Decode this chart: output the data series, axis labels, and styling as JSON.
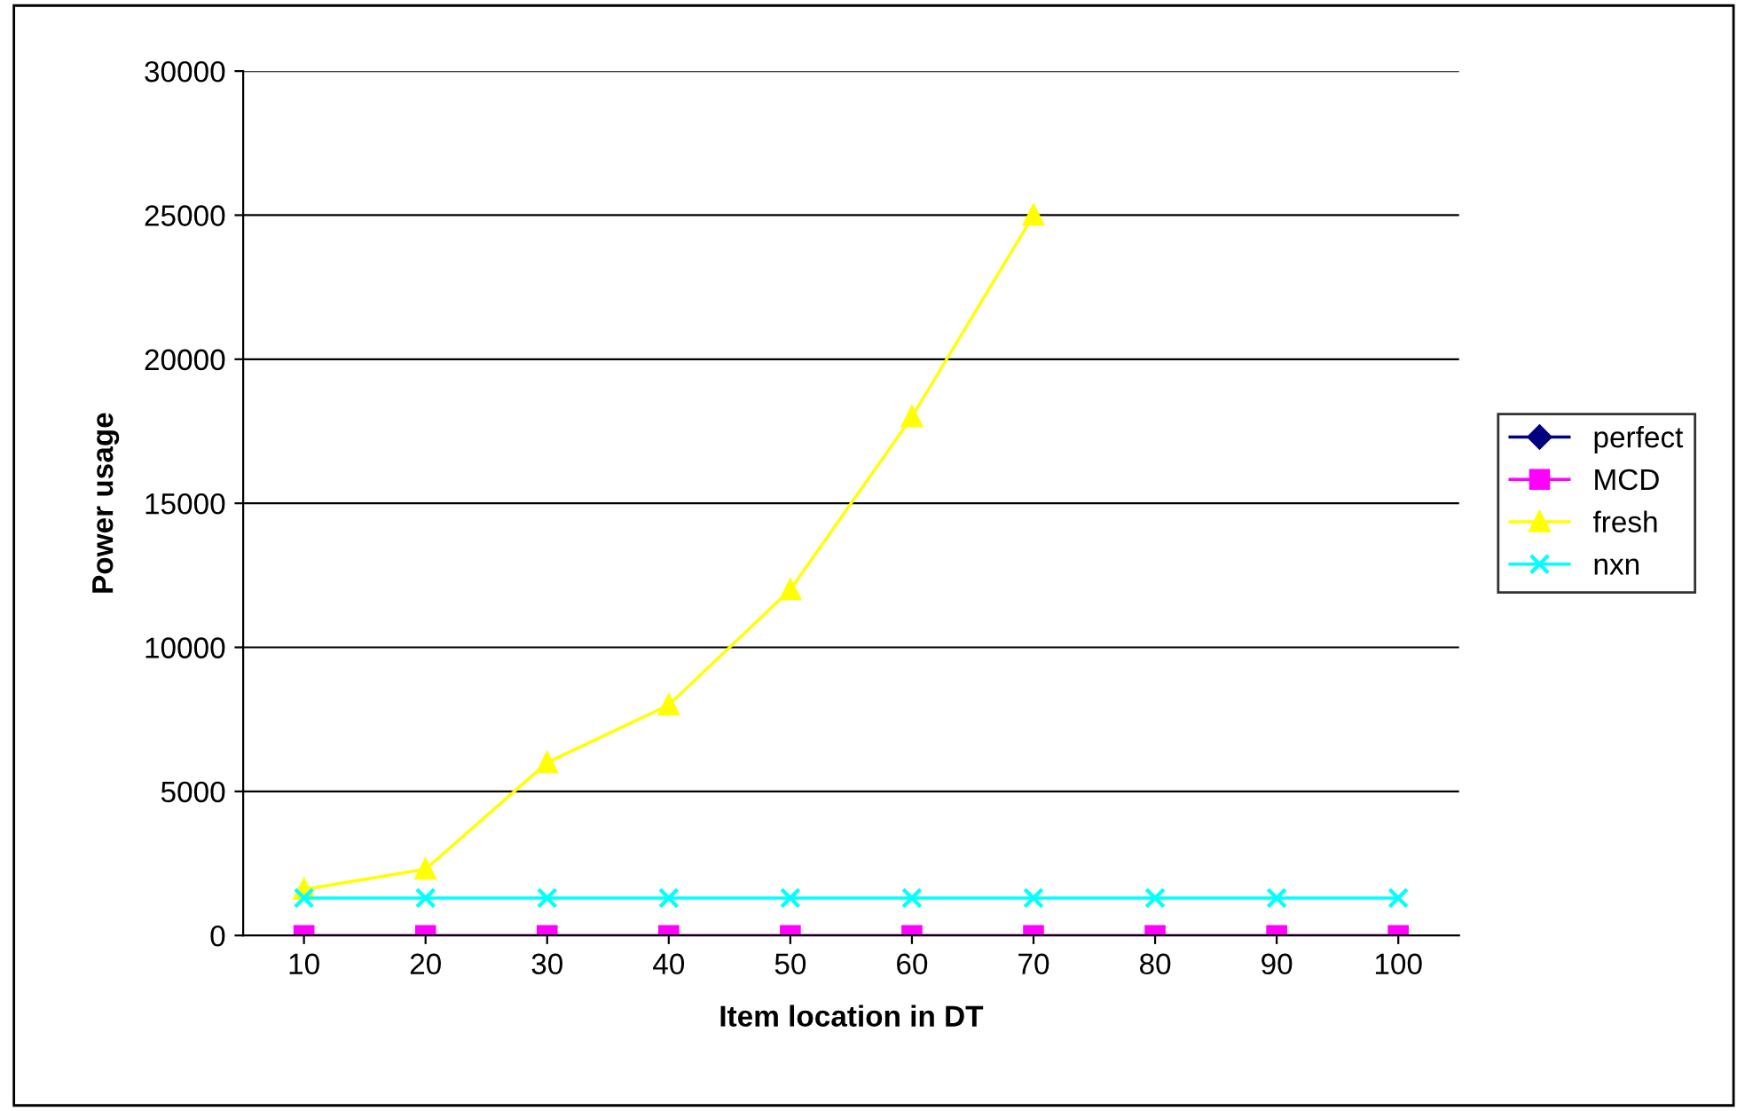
{
  "chart_data": {
    "type": "line",
    "xlabel": "Item location in DT",
    "ylabel": "Power usage",
    "categories": [
      "10",
      "20",
      "30",
      "40",
      "50",
      "60",
      "70",
      "80",
      "90",
      "100"
    ],
    "series": [
      {
        "name": "perfect",
        "color": "#000080",
        "marker": "diamond",
        "values": [
          null,
          null,
          null,
          null,
          null,
          null,
          null,
          null,
          null,
          null
        ]
      },
      {
        "name": "MCD",
        "color": "#ff00ff",
        "marker": "square",
        "values": [
          0,
          0,
          0,
          0,
          0,
          0,
          0,
          0,
          0,
          0
        ]
      },
      {
        "name": "fresh",
        "color": "#ffff00",
        "marker": "triangle",
        "values": [
          1600,
          2300,
          6000,
          8000,
          12000,
          18000,
          25000,
          null,
          null,
          null
        ]
      },
      {
        "name": "nxn",
        "color": "#00ffff",
        "marker": "cross",
        "values": [
          1300,
          1300,
          1300,
          1300,
          1300,
          1300,
          1300,
          1300,
          1300,
          1300
        ]
      }
    ],
    "ylim": [
      0,
      30000
    ],
    "yticks": [
      0,
      5000,
      10000,
      15000,
      20000,
      25000,
      30000
    ],
    "grid": "y",
    "legend": "right",
    "line_style": "solid"
  }
}
